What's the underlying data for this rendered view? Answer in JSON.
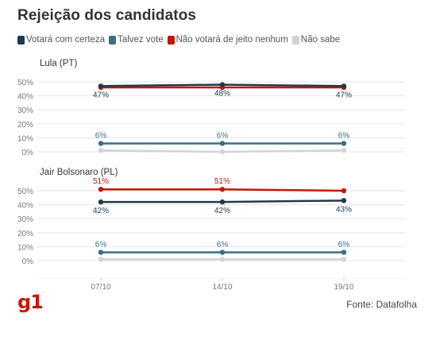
{
  "title": "Rejeição dos candidatos",
  "source": "Fonte: Datafolha",
  "logo": "g1",
  "legend": [
    {
      "label": "Votará com certeza",
      "color": "#1f3a4a"
    },
    {
      "label": "Talvez vote",
      "color": "#3b6e86"
    },
    {
      "label": "Não votará de jeito nenhum",
      "color": "#c4170c"
    },
    {
      "label": "Não sabe",
      "color": "#d3d3d3"
    }
  ],
  "chart_data": [
    {
      "type": "line",
      "title": "Lula (PT)",
      "categories": [
        "07/10",
        "14/10",
        "19/10"
      ],
      "y_ticks": [
        "50%",
        "40%",
        "30%",
        "20%",
        "10%",
        "0%"
      ],
      "ylim": [
        0,
        50
      ],
      "grid": true,
      "show_x_labels": false,
      "series": [
        {
          "name": "Votará com certeza",
          "values": [
            47,
            48,
            47
          ],
          "labels": [
            "47%",
            "48%",
            "47%"
          ],
          "label_position": "below"
        },
        {
          "name": "Talvez vote",
          "values": [
            6,
            6,
            6
          ],
          "labels": [
            "6%",
            "6%",
            "6%"
          ],
          "label_position": "above"
        },
        {
          "name": "Não votará de jeito nenhum",
          "values": [
            46,
            46,
            46
          ],
          "labels": [
            "",
            "",
            ""
          ],
          "label_position": "above"
        },
        {
          "name": "Não sabe",
          "values": [
            1,
            0,
            1
          ],
          "labels": [
            "",
            "",
            ""
          ],
          "label_position": "above"
        }
      ]
    },
    {
      "type": "line",
      "title": "Jair Bolsonaro (PL)",
      "categories": [
        "07/10",
        "14/10",
        "19/10"
      ],
      "y_ticks": [
        "50%",
        "40%",
        "30%",
        "20%",
        "10%",
        "0%"
      ],
      "ylim": [
        0,
        50
      ],
      "grid": true,
      "show_x_labels": true,
      "series": [
        {
          "name": "Votará com certeza",
          "values": [
            42,
            42,
            43
          ],
          "labels": [
            "42%",
            "42%",
            "43%"
          ],
          "label_position": "below"
        },
        {
          "name": "Talvez vote",
          "values": [
            6,
            6,
            6
          ],
          "labels": [
            "6%",
            "6%",
            "6%"
          ],
          "label_position": "above"
        },
        {
          "name": "Não votará de jeito nenhum",
          "values": [
            51,
            51,
            50
          ],
          "labels": [
            "51%",
            "51%",
            ""
          ],
          "label_position": "above"
        },
        {
          "name": "Não sabe",
          "values": [
            1,
            1,
            1
          ],
          "labels": [
            "",
            "",
            ""
          ],
          "label_position": "above"
        }
      ]
    }
  ]
}
